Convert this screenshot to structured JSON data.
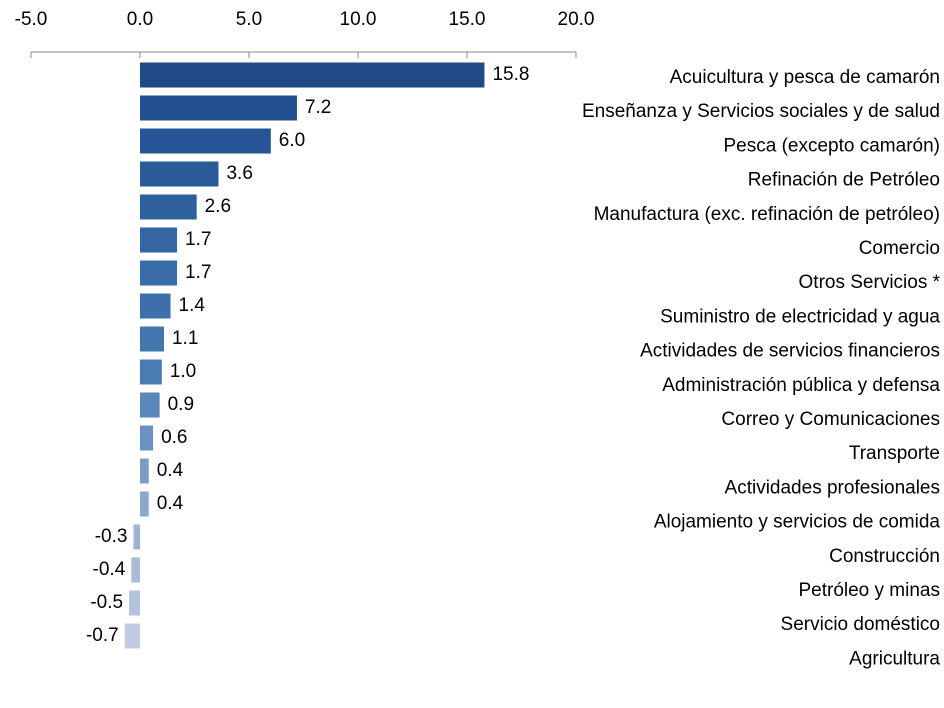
{
  "chart_data": {
    "type": "bar",
    "orientation": "horizontal",
    "categories": [
      "Acuicultura y pesca de camarón",
      "Enseñanza y Servicios sociales y de salud",
      "Pesca (excepto camarón)",
      "Refinación de Petróleo",
      "Manufactura (exc. refinación de petróleo)",
      "Comercio",
      "Otros Servicios *",
      "Suministro de electricidad y agua",
      "Actividades de servicios financieros",
      "Administración pública y defensa",
      "Correo y Comunicaciones",
      "Transporte",
      "Actividades profesionales",
      "Alojamiento y servicios de comida",
      "Construcción",
      "Petróleo y minas",
      "Servicio doméstico",
      "Agricultura"
    ],
    "values": [
      15.8,
      7.2,
      6.0,
      3.6,
      2.6,
      1.7,
      1.7,
      1.4,
      1.1,
      1.0,
      0.9,
      0.6,
      0.4,
      0.4,
      -0.3,
      -0.4,
      -0.5,
      -0.7
    ],
    "value_labels": [
      "15.8",
      "7.2",
      "6.0",
      "3.6",
      "2.6",
      "1.7",
      "1.7",
      "1.4",
      "1.1",
      "1.0",
      "0.9",
      "0.6",
      "0.4",
      "0.4",
      "-0.3",
      "-0.4",
      "-0.5",
      "-0.7"
    ],
    "colors": [
      "#1f4a86",
      "#22508f",
      "#255594",
      "#295b99",
      "#2d609d",
      "#3366a3",
      "#386ba7",
      "#3d70aa",
      "#4376ae",
      "#4a7bb2",
      "#5a86b9",
      "#6a92c0",
      "#7a9dc6",
      "#89a8cc",
      "#9fb3d4",
      "#a9bbd8",
      "#b4c3dc",
      "#c0cbe1"
    ],
    "xlim": [
      -5,
      20
    ],
    "xticks": [
      {
        "value": -5,
        "label": "-5.0"
      },
      {
        "value": 0,
        "label": "0.0"
      },
      {
        "value": 5,
        "label": "5.0"
      },
      {
        "value": 10,
        "label": "10.0"
      },
      {
        "value": 15,
        "label": "15.0"
      },
      {
        "value": 20,
        "label": "20.0"
      }
    ],
    "axis_position": "top"
  }
}
